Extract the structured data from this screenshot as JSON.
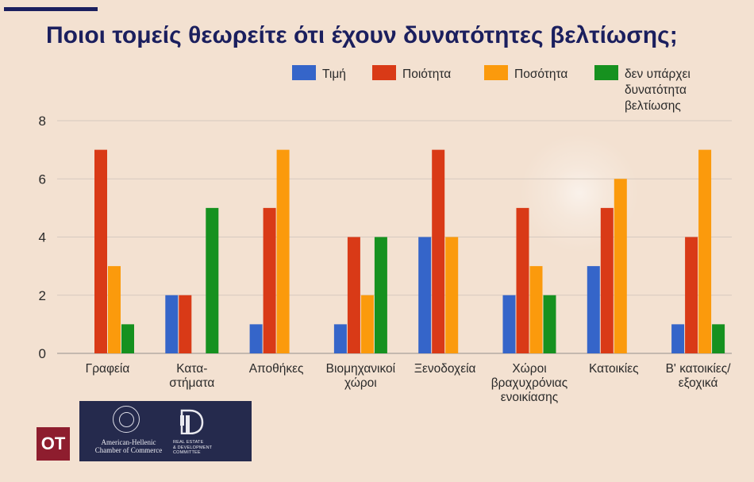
{
  "title": "Ποιοι τομείς θεωρείτε ότι έχουν δυνατότητες βελτίωσης;",
  "chart_data": {
    "type": "bar",
    "title": "Ποιοι τομείς θεωρείτε ότι έχουν δυνατότητες βελτίωσης;",
    "categories": [
      [
        "Γραφεία"
      ],
      [
        "Κατα-",
        "στήματα"
      ],
      [
        "Αποθήκες"
      ],
      [
        "Βιομηχανικοί",
        "χώροι"
      ],
      [
        "Ξενοδοχεία"
      ],
      [
        "Χώροι",
        "βραχυχρόνιας",
        "ενοικίασης"
      ],
      [
        "Κατοικίες"
      ],
      [
        "Β' κατοικίες/",
        "εξοχικά"
      ]
    ],
    "series": [
      {
        "name": "Τιμή",
        "color": "#3565c9",
        "values": [
          0,
          2,
          1,
          1,
          4,
          2,
          3,
          1
        ]
      },
      {
        "name": "Ποιότητα",
        "color": "#d93a17",
        "values": [
          7,
          2,
          5,
          4,
          7,
          5,
          5,
          4
        ]
      },
      {
        "name": "Ποσότητα",
        "color": "#fb9a0c",
        "values": [
          3,
          0,
          7,
          2,
          4,
          3,
          6,
          7
        ]
      },
      {
        "name": "δεν υπάρχει δυνατότητα βελτίωσης",
        "color": "#16911f",
        "values": [
          1,
          5,
          0,
          4,
          0,
          2,
          0,
          1
        ]
      }
    ],
    "legend_lines": [
      [
        "Τιμή"
      ],
      [
        "Ποιότητα"
      ],
      [
        "Ποσότητα"
      ],
      [
        "δεν υπάρχει",
        "δυνατότητα",
        "βελτίωσης"
      ]
    ],
    "yticks": [
      "0",
      "2",
      "4",
      "6",
      "8"
    ],
    "ylim": [
      0,
      8
    ],
    "grid": true,
    "legend_position": "top-right"
  },
  "logos": {
    "ot": "OT",
    "amcham_line1": "American-Hellenic",
    "amcham_line2": "Chamber of Commerce",
    "redc_line1": "REAL ESTATE",
    "redc_line2": "& DEVELOPMENT",
    "redc_line3": "COMMITTEE"
  }
}
